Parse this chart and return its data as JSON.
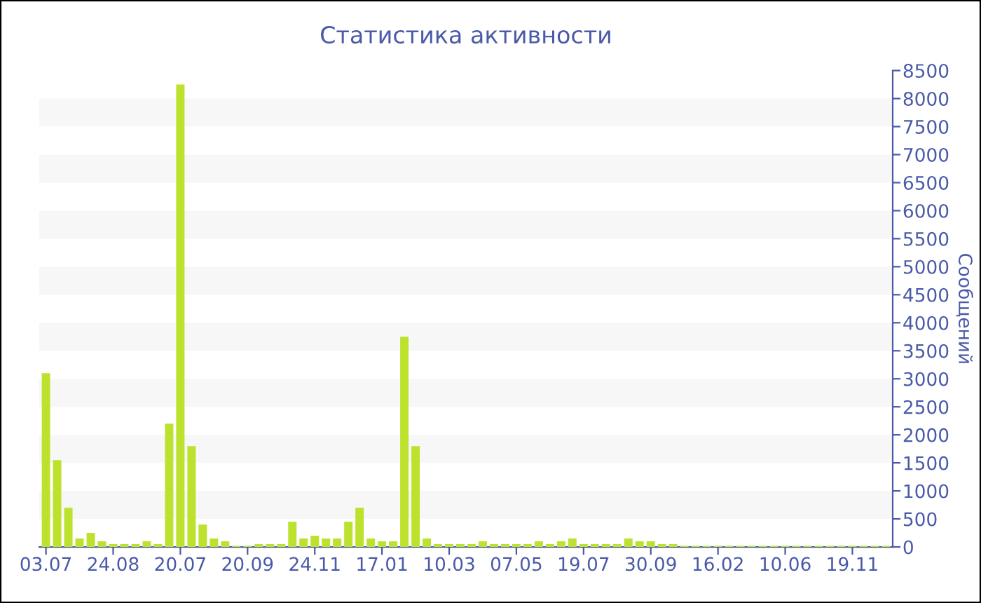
{
  "chart_data": {
    "type": "bar",
    "title": "Статистика активности",
    "ylabel": "Сообщений",
    "categories": [
      "03.07",
      null,
      null,
      null,
      null,
      null,
      "24.08",
      null,
      null,
      null,
      null,
      null,
      "20.07",
      null,
      null,
      null,
      null,
      null,
      "20.09",
      null,
      null,
      null,
      null,
      null,
      "24.11",
      null,
      null,
      null,
      null,
      null,
      "17.01",
      null,
      null,
      null,
      null,
      null,
      "10.03",
      null,
      null,
      null,
      null,
      null,
      "07.05",
      null,
      null,
      null,
      null,
      null,
      "19.07",
      null,
      null,
      null,
      null,
      null,
      "30.09",
      null,
      null,
      null,
      null,
      null,
      "16.02",
      null,
      null,
      null,
      null,
      null,
      "10.06",
      null,
      null,
      null,
      null,
      null,
      "19.11",
      null,
      null,
      null
    ],
    "values": [
      3100,
      1550,
      700,
      150,
      250,
      100,
      50,
      50,
      50,
      100,
      50,
      2200,
      8250,
      1800,
      400,
      150,
      100,
      20,
      20,
      50,
      50,
      50,
      450,
      150,
      200,
      150,
      150,
      450,
      700,
      150,
      100,
      100,
      3750,
      1800,
      150,
      50,
      50,
      50,
      50,
      100,
      50,
      50,
      50,
      50,
      100,
      50,
      100,
      150,
      50,
      50,
      50,
      50,
      150,
      100,
      100,
      50,
      50,
      20,
      20,
      20,
      20,
      20,
      20,
      20,
      20,
      20,
      20,
      20,
      20,
      20,
      20,
      20,
      20,
      20,
      20,
      20
    ],
    "color": "#bde22e",
    "ylim": [
      0,
      8500
    ],
    "yticks": [
      0,
      500,
      1000,
      1500,
      2000,
      2500,
      3000,
      3500,
      4000,
      4500,
      5000,
      5500,
      6000,
      6500,
      7000,
      7500,
      8000,
      8500
    ],
    "bands": [
      {
        "axis": "y",
        "from": 500,
        "to": 1000,
        "color": "#f7f7f7"
      },
      {
        "axis": "y",
        "from": 1500,
        "to": 2000,
        "color": "#f7f7f7"
      },
      {
        "axis": "y",
        "from": 2500,
        "to": 3000,
        "color": "#f7f7f7"
      },
      {
        "axis": "y",
        "from": 3500,
        "to": 4000,
        "color": "#f7f7f7"
      },
      {
        "axis": "y",
        "from": 4500,
        "to": 5000,
        "color": "#f7f7f7"
      },
      {
        "axis": "y",
        "from": 5500,
        "to": 6000,
        "color": "#f7f7f7"
      },
      {
        "axis": "y",
        "from": 6500,
        "to": 7000,
        "color": "#f7f7f7"
      },
      {
        "axis": "y",
        "from": 7500,
        "to": 8000,
        "color": "#f7f7f7"
      }
    ],
    "legend": false
  }
}
